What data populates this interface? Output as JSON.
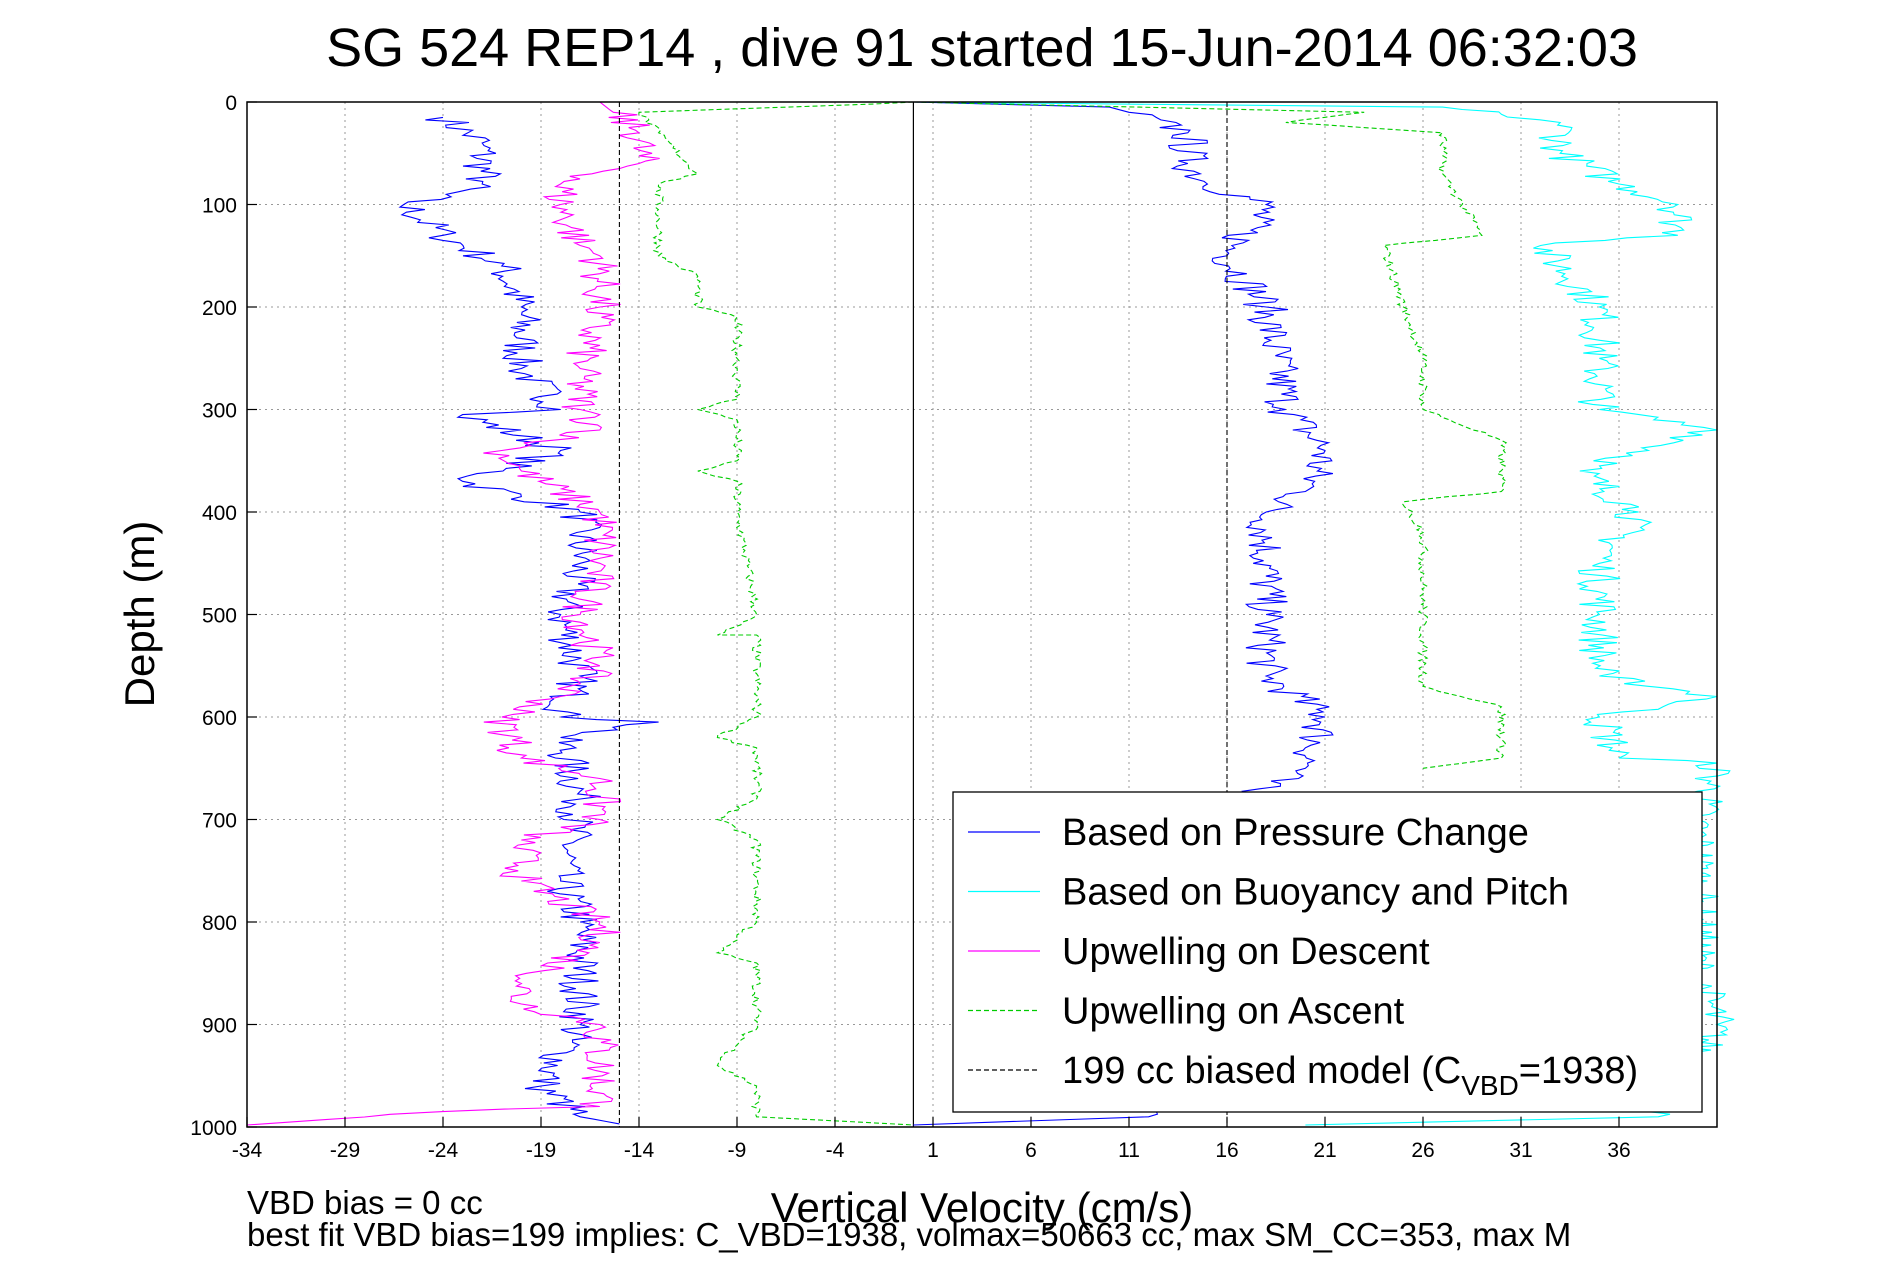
{
  "chart_data": {
    "type": "line",
    "title": "SG 524   REP14  , dive 91 started 15-Jun-2014 06:32:03",
    "xlabel": "Vertical Velocity (cm/s)",
    "ylabel": "Depth (m)",
    "xlim": [
      -34,
      41
    ],
    "ylim": [
      0,
      1000
    ],
    "y_reversed": true,
    "grid": true,
    "xticks": [
      -34,
      -29,
      -24,
      -19,
      -14,
      -9,
      -4,
      1,
      6,
      11,
      16,
      21,
      26,
      31,
      36
    ],
    "yticks": [
      0,
      100,
      200,
      300,
      400,
      500,
      600,
      700,
      800,
      900,
      1000
    ],
    "legend_position": "bottom-right",
    "footnote_1": "VBD bias = 0 cc",
    "footnote_2": "best fit VBD bias=199 implies: C_VBD=1938, volmax=50663 cc, max SM_CC=353, max M",
    "series": [
      {
        "name": "Based on Pressure Change",
        "color": "#0000ff",
        "style": "solid",
        "points": [
          [
            -24,
            15
          ],
          [
            -22,
            40
          ],
          [
            -22,
            80
          ],
          [
            -26,
            100
          ],
          [
            -24,
            130
          ],
          [
            -21,
            160
          ],
          [
            -20,
            200
          ],
          [
            -20,
            260
          ],
          [
            -18,
            300
          ],
          [
            -23,
            305
          ],
          [
            -18,
            340
          ],
          [
            -23,
            370
          ],
          [
            -17,
            400
          ],
          [
            -17,
            450
          ],
          [
            -18,
            500
          ],
          [
            -17,
            560
          ],
          [
            -18,
            600
          ],
          [
            -13,
            605
          ],
          [
            -18,
            620
          ],
          [
            -17,
            680
          ],
          [
            -18,
            760
          ],
          [
            -17,
            800
          ],
          [
            -17,
            900
          ],
          [
            -19,
            960
          ],
          [
            -17,
            990
          ],
          [
            -15,
            997
          ]
        ]
      },
      {
        "name": "Based on Pressure Change",
        "color": "#0000ff",
        "style": "solid",
        "points": [
          [
            0,
            0
          ],
          [
            10,
            5
          ],
          [
            11,
            10
          ],
          [
            14,
            30
          ],
          [
            14,
            60
          ],
          [
            15,
            80
          ],
          [
            18,
            100
          ],
          [
            16,
            150
          ],
          [
            18,
            200
          ],
          [
            19,
            300
          ],
          [
            21,
            340
          ],
          [
            20,
            380
          ],
          [
            18,
            400
          ],
          [
            18,
            500
          ],
          [
            18,
            560
          ],
          [
            21,
            600
          ],
          [
            20,
            650
          ],
          [
            16,
            680
          ],
          [
            16,
            700
          ],
          [
            15,
            760
          ],
          [
            15,
            900
          ],
          [
            14,
            950
          ],
          [
            12,
            990
          ],
          [
            0,
            998
          ]
        ]
      },
      {
        "name": "Based on Buoyancy and Pitch",
        "color": "#00ffff",
        "style": "solid",
        "points": [
          [
            0,
            0
          ],
          [
            27,
            5
          ],
          [
            30,
            12
          ],
          [
            33,
            20
          ],
          [
            33,
            50
          ],
          [
            36,
            80
          ],
          [
            39,
            100
          ],
          [
            39,
            130
          ],
          [
            32,
            140
          ],
          [
            35,
            200
          ],
          [
            35,
            250
          ],
          [
            35,
            300
          ],
          [
            41,
            320
          ],
          [
            34,
            360
          ],
          [
            37,
            400
          ],
          [
            35,
            450
          ],
          [
            35,
            500
          ],
          [
            35,
            560
          ],
          [
            41,
            580
          ],
          [
            35,
            600
          ],
          [
            36,
            640
          ],
          [
            41,
            645
          ],
          [
            40,
            700
          ],
          [
            40,
            850
          ],
          [
            41,
            900
          ],
          [
            38,
            990
          ],
          [
            20,
            998
          ]
        ]
      },
      {
        "name": "Upwelling on Descent",
        "color": "#ff00ff",
        "style": "solid",
        "points": [
          [
            -16,
            0
          ],
          [
            -14,
            30
          ],
          [
            -14,
            60
          ],
          [
            -18,
            80
          ],
          [
            -18,
            100
          ],
          [
            -17,
            140
          ],
          [
            -16,
            150
          ],
          [
            -16,
            200
          ],
          [
            -17,
            260
          ],
          [
            -17,
            300
          ],
          [
            -16,
            320
          ],
          [
            -21,
            340
          ],
          [
            -20,
            360
          ],
          [
            -16,
            400
          ],
          [
            -16,
            450
          ],
          [
            -17,
            500
          ],
          [
            -16,
            550
          ],
          [
            -18,
            580
          ],
          [
            -21,
            600
          ],
          [
            -20,
            640
          ],
          [
            -16,
            660
          ],
          [
            -16,
            700
          ],
          [
            -20,
            720
          ],
          [
            -20,
            760
          ],
          [
            -16,
            800
          ],
          [
            -16,
            820
          ],
          [
            -20,
            860
          ],
          [
            -20,
            880
          ],
          [
            -16,
            900
          ],
          [
            -16,
            980
          ],
          [
            -24,
            985
          ],
          [
            -34,
            998
          ]
        ]
      },
      {
        "name": "Upwelling on Ascent",
        "color": "#00cc00",
        "style": "dashed",
        "points": [
          [
            0,
            0
          ],
          [
            -2,
            2
          ],
          [
            -14,
            10
          ],
          [
            -13,
            30
          ],
          [
            -11,
            70
          ],
          [
            -13,
            80
          ],
          [
            -13,
            150
          ],
          [
            -11,
            170
          ],
          [
            -11,
            200
          ],
          [
            -9,
            210
          ],
          [
            -9,
            250
          ],
          [
            -9,
            290
          ],
          [
            -11,
            300
          ],
          [
            -9,
            310
          ],
          [
            -9,
            350
          ],
          [
            -11,
            360
          ],
          [
            -9,
            370
          ],
          [
            -9,
            400
          ],
          [
            -8,
            500
          ],
          [
            -10,
            520
          ],
          [
            -8,
            520
          ],
          [
            -8,
            600
          ],
          [
            -10,
            620
          ],
          [
            -8,
            630
          ],
          [
            -8,
            680
          ],
          [
            -10,
            700
          ],
          [
            -8,
            720
          ],
          [
            -8,
            800
          ],
          [
            -10,
            830
          ],
          [
            -8,
            840
          ],
          [
            -8,
            900
          ],
          [
            -10,
            940
          ],
          [
            -8,
            960
          ],
          [
            -8,
            990
          ],
          [
            0,
            998
          ]
        ]
      },
      {
        "name": "Upwelling on Ascent",
        "color": "#00cc00",
        "style": "dashed",
        "points": [
          [
            0,
            0
          ],
          [
            23,
            10
          ],
          [
            19,
            20
          ],
          [
            27,
            30
          ],
          [
            27,
            70
          ],
          [
            28,
            100
          ],
          [
            29,
            130
          ],
          [
            24,
            140
          ],
          [
            25,
            200
          ],
          [
            26,
            250
          ],
          [
            26,
            300
          ],
          [
            30,
            330
          ],
          [
            30,
            380
          ],
          [
            25,
            390
          ],
          [
            26,
            420
          ],
          [
            26,
            480
          ],
          [
            26,
            540
          ],
          [
            26,
            570
          ],
          [
            30,
            590
          ],
          [
            30,
            640
          ],
          [
            26,
            650
          ]
        ]
      },
      {
        "name": "199 cc biased model (C_VBD=1938)",
        "color": "#000000",
        "style": "dashed",
        "points": [
          [
            -15,
            0
          ],
          [
            -15,
            1000
          ]
        ]
      },
      {
        "name": "199 cc biased model (C_VBD=1938)",
        "color": "#000000",
        "style": "dashed",
        "points": [
          [
            16,
            0
          ],
          [
            16,
            1000
          ]
        ]
      }
    ],
    "legend": [
      {
        "label": "Based on Pressure Change",
        "color": "#0000ff",
        "style": "solid"
      },
      {
        "label": "Based on Buoyancy and Pitch",
        "color": "#00ffff",
        "style": "solid"
      },
      {
        "label": "Upwelling on Descent",
        "color": "#ff00ff",
        "style": "solid"
      },
      {
        "label": "Upwelling on Ascent",
        "color": "#00cc00",
        "style": "dashed"
      },
      {
        "label": "199 cc biased model (C",
        "sub": "VBD",
        "suffix": "=1938)",
        "color": "#000000",
        "style": "dashed"
      }
    ]
  }
}
